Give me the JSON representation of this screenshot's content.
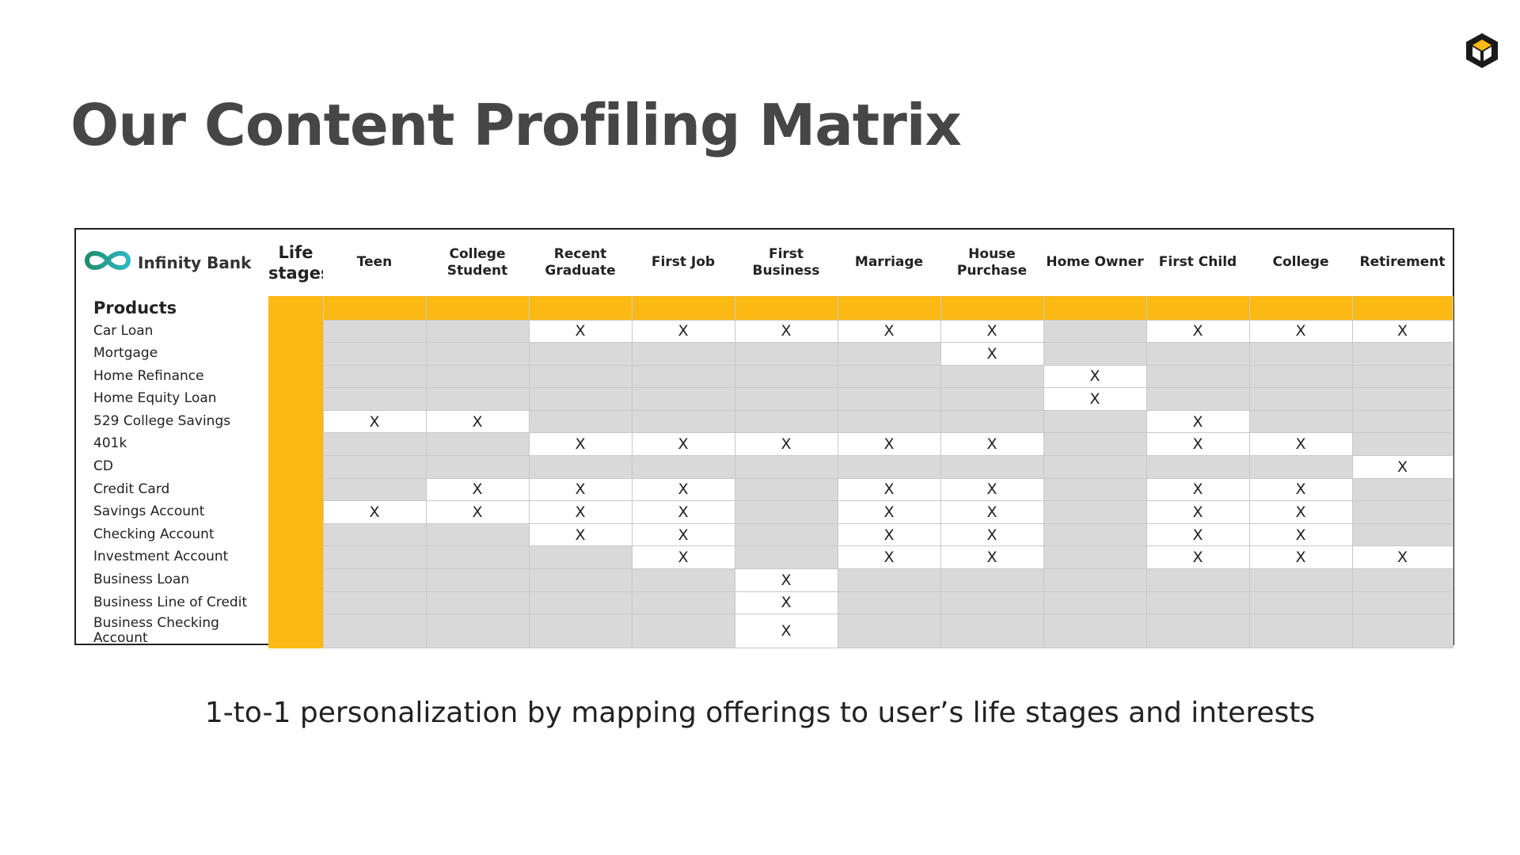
{
  "slide": {
    "title": "Our Content Profiling Matrix",
    "subtitle": "1-to-1 personalization by mapping offerings to user’s life stages and interests",
    "logo_icon": "cube-hexagon-icon"
  },
  "matrix": {
    "brand_name": "Infinity Bank",
    "brand_icon": "infinity-icon",
    "stage_header": "Life stages",
    "products_label": "Products",
    "mark": "X",
    "accent_color": "#fdb913",
    "columns": [
      "Teen",
      "College Student",
      "Recent Graduate",
      "First Job",
      "First Business",
      "Marriage",
      "House Purchase",
      "Home Owner",
      "First Child",
      "College",
      "Retirement"
    ],
    "rows": [
      {
        "product": "Car Loan",
        "marks": [
          0,
          0,
          1,
          1,
          1,
          1,
          1,
          0,
          1,
          1,
          1
        ]
      },
      {
        "product": "Mortgage",
        "marks": [
          0,
          0,
          0,
          0,
          0,
          0,
          1,
          0,
          0,
          0,
          0
        ]
      },
      {
        "product": "Home Refinance",
        "marks": [
          0,
          0,
          0,
          0,
          0,
          0,
          0,
          1,
          0,
          0,
          0
        ]
      },
      {
        "product": "Home Equity Loan",
        "marks": [
          0,
          0,
          0,
          0,
          0,
          0,
          0,
          1,
          0,
          0,
          0
        ]
      },
      {
        "product": "529 College Savings",
        "marks": [
          1,
          1,
          0,
          0,
          0,
          0,
          0,
          0,
          1,
          0,
          0
        ]
      },
      {
        "product": "401k",
        "marks": [
          0,
          0,
          1,
          1,
          1,
          1,
          1,
          0,
          1,
          1,
          0
        ]
      },
      {
        "product": "CD",
        "marks": [
          0,
          0,
          0,
          0,
          0,
          0,
          0,
          0,
          0,
          0,
          1
        ]
      },
      {
        "product": "Credit Card",
        "marks": [
          0,
          1,
          1,
          1,
          0,
          1,
          1,
          0,
          1,
          1,
          0
        ]
      },
      {
        "product": "Savings Account",
        "marks": [
          1,
          1,
          1,
          1,
          0,
          1,
          1,
          0,
          1,
          1,
          0
        ]
      },
      {
        "product": "Checking Account",
        "marks": [
          0,
          0,
          1,
          1,
          0,
          1,
          1,
          0,
          1,
          1,
          0
        ]
      },
      {
        "product": "Investment Account",
        "marks": [
          0,
          0,
          0,
          1,
          0,
          1,
          1,
          0,
          1,
          1,
          1
        ]
      },
      {
        "product": "Business Loan",
        "marks": [
          0,
          0,
          0,
          0,
          1,
          0,
          0,
          0,
          0,
          0,
          0
        ]
      },
      {
        "product": "Business Line of Credit",
        "marks": [
          0,
          0,
          0,
          0,
          1,
          0,
          0,
          0,
          0,
          0,
          0
        ]
      },
      {
        "product": "Business Checking Account",
        "marks": [
          0,
          0,
          0,
          0,
          1,
          0,
          0,
          0,
          0,
          0,
          0
        ]
      }
    ]
  }
}
